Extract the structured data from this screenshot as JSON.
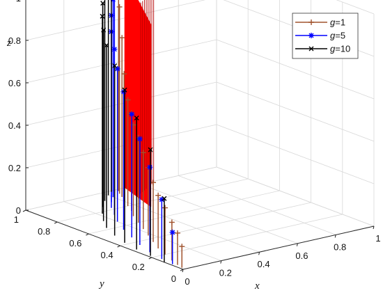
{
  "chart_data": {
    "type": "stem3",
    "axis_labels": {
      "x": "x",
      "y": "y",
      "z": "z"
    },
    "xlim": [
      0,
      1
    ],
    "ylim": [
      0,
      1
    ],
    "zlim": [
      0,
      1
    ],
    "x_ticks": [
      "0",
      "0.2",
      "0.4",
      "0.6",
      "0.8",
      "1"
    ],
    "y_ticks": [
      "0",
      "0.2",
      "0.4",
      "0.6",
      "0.8",
      "1"
    ],
    "z_ticks": [
      "0",
      "0.2",
      "0.4",
      "0.6",
      "0.8",
      "1"
    ],
    "grid": true,
    "legend": {
      "placement": "top-right",
      "entries": [
        {
          "prefix": "g",
          "suffix": "=1"
        },
        {
          "prefix": "g",
          "suffix": "=5"
        },
        {
          "prefix": "g",
          "suffix": "=10"
        }
      ]
    },
    "dense_fill_color": "#ff0000",
    "series": [
      {
        "name": "g=1",
        "color": "#a0522d",
        "marker": "plus",
        "points": [
          [
            0.01,
            0.02,
            0.1
          ],
          [
            0.02,
            0.06,
            0.15
          ],
          [
            0.04,
            0.12,
            0.18
          ],
          [
            0.07,
            0.2,
            0.22
          ],
          [
            0.1,
            0.28,
            0.25
          ],
          [
            0.14,
            0.36,
            0.28
          ],
          [
            0.18,
            0.44,
            0.32
          ],
          [
            0.22,
            0.52,
            0.36
          ],
          [
            0.26,
            0.6,
            0.4
          ],
          [
            0.3,
            0.68,
            0.43
          ],
          [
            0.34,
            0.74,
            0.46
          ],
          [
            0.37,
            0.8,
            0.5
          ],
          [
            0.4,
            0.86,
            0.6
          ],
          [
            0.43,
            0.91,
            0.75
          ],
          [
            0.45,
            0.95,
            0.88
          ],
          [
            0.47,
            0.98,
            0.98
          ]
        ]
      },
      {
        "name": "g=5",
        "color": "#0000ff",
        "marker": "asterisk",
        "points": [
          [
            0.01,
            0.08,
            0.15
          ],
          [
            0.02,
            0.16,
            0.28
          ],
          [
            0.04,
            0.26,
            0.4
          ],
          [
            0.07,
            0.36,
            0.5
          ],
          [
            0.11,
            0.46,
            0.58
          ],
          [
            0.15,
            0.56,
            0.65
          ],
          [
            0.2,
            0.66,
            0.72
          ],
          [
            0.25,
            0.74,
            0.78
          ],
          [
            0.3,
            0.82,
            0.83
          ],
          [
            0.35,
            0.88,
            0.88
          ],
          [
            0.4,
            0.93,
            0.93
          ],
          [
            0.44,
            0.97,
            0.97
          ]
        ]
      },
      {
        "name": "g=10",
        "color": "#000000",
        "marker": "x",
        "points": [
          [
            0.0,
            0.12,
            0.3
          ],
          [
            0.01,
            0.22,
            0.5
          ],
          [
            0.02,
            0.32,
            0.62
          ],
          [
            0.04,
            0.42,
            0.72
          ],
          [
            0.07,
            0.52,
            0.8
          ],
          [
            0.11,
            0.62,
            0.86
          ],
          [
            0.16,
            0.7,
            0.9
          ],
          [
            0.22,
            0.78,
            0.93
          ],
          [
            0.28,
            0.85,
            0.96
          ],
          [
            0.34,
            0.91,
            0.98
          ],
          [
            0.4,
            0.96,
            0.99
          ],
          [
            0.44,
            0.99,
            1.0
          ]
        ]
      }
    ]
  }
}
